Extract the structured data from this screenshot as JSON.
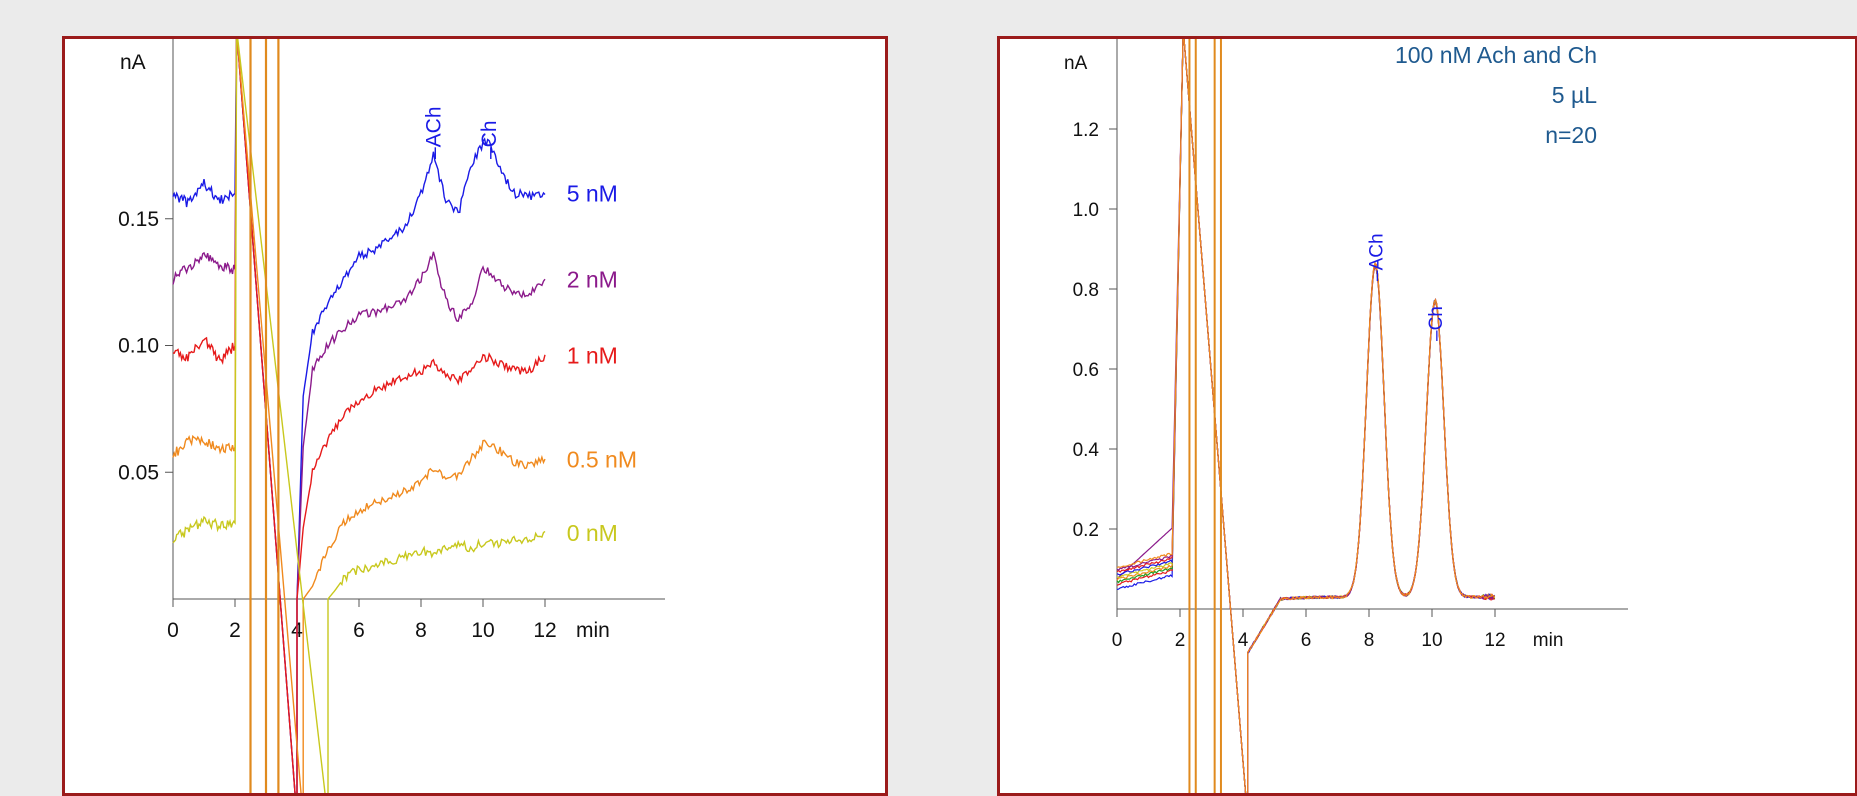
{
  "chart_data": [
    {
      "type": "line",
      "ylabel": "nA",
      "xlabel": "min",
      "xlim": [
        0,
        16
      ],
      "ylim": [
        0,
        0.22
      ],
      "xticks": [
        0,
        2,
        4,
        6,
        8,
        10,
        12
      ],
      "yticks": [
        0.05,
        0.1,
        0.15
      ],
      "ytick_labels": [
        "0.05",
        "0.10",
        "0.15"
      ],
      "grid": false,
      "vertical_lines_x": [
        2.5,
        3.0,
        3.4
      ],
      "vertical_line_color": "#e08a1e",
      "peak_labels": [
        {
          "text": "ACh",
          "x": 8.4
        },
        {
          "text": "Ch",
          "x": 10.2
        }
      ],
      "peak_label_color": "#1a1ae6",
      "series": [
        {
          "name": "5 nM",
          "color": "#1a1ae6",
          "offset": 0.108,
          "x": [
            0,
            0.5,
            1,
            1.5,
            2,
            2.05,
            4,
            4.2,
            4.5,
            5,
            5.5,
            6,
            6.5,
            7,
            7.5,
            8,
            8.4,
            8.8,
            9.2,
            9.6,
            10,
            10.2,
            10.5,
            11,
            11.5,
            12
          ],
          "y": [
            0.16,
            0.156,
            0.164,
            0.157,
            0.16,
            0.22,
            0.0,
            0.08,
            0.105,
            0.117,
            0.126,
            0.135,
            0.138,
            0.143,
            0.147,
            0.16,
            0.175,
            0.157,
            0.152,
            0.17,
            0.18,
            0.181,
            0.17,
            0.16,
            0.159,
            0.16
          ]
        },
        {
          "name": "2 nM",
          "color": "#8b1a8b",
          "offset": 0.072,
          "x": [
            0,
            0.5,
            1,
            1.5,
            2,
            2.05,
            4,
            4.2,
            4.5,
            5,
            5.5,
            6,
            6.5,
            7,
            7.5,
            8,
            8.4,
            8.8,
            9.2,
            9.6,
            10,
            10.2,
            10.5,
            11,
            11.5,
            12
          ],
          "y": [
            0.126,
            0.131,
            0.136,
            0.131,
            0.13,
            0.22,
            0.0,
            0.06,
            0.09,
            0.1,
            0.107,
            0.112,
            0.113,
            0.115,
            0.118,
            0.126,
            0.136,
            0.118,
            0.11,
            0.116,
            0.131,
            0.129,
            0.125,
            0.12,
            0.121,
            0.126
          ]
        },
        {
          "name": "1 nM",
          "color": "#e61a1a",
          "offset": 0.041,
          "x": [
            0,
            0.5,
            1,
            1.5,
            2,
            2.05,
            4,
            4.2,
            4.5,
            5,
            5.5,
            6,
            6.5,
            7,
            7.5,
            8,
            8.4,
            8.8,
            9.2,
            9.6,
            10,
            10.2,
            10.5,
            11,
            11.5,
            12
          ],
          "y": [
            0.098,
            0.095,
            0.103,
            0.094,
            0.1,
            0.22,
            0.0,
            0.028,
            0.05,
            0.063,
            0.072,
            0.078,
            0.082,
            0.085,
            0.088,
            0.09,
            0.093,
            0.088,
            0.086,
            0.09,
            0.095,
            0.095,
            0.093,
            0.09,
            0.09,
            0.096
          ]
        },
        {
          "name": "0.5 nM",
          "color": "#f08a1e",
          "offset": 0.0,
          "x": [
            0,
            0.5,
            1,
            1.5,
            2,
            2.05,
            4.2,
            4.5,
            5,
            5.5,
            6,
            6.5,
            7,
            7.5,
            8,
            8.4,
            8.8,
            9.2,
            9.6,
            10,
            10.2,
            10.5,
            11,
            11.5,
            12
          ],
          "y": [
            0.057,
            0.062,
            0.063,
            0.059,
            0.06,
            0.22,
            0.0,
            0.005,
            0.02,
            0.03,
            0.035,
            0.038,
            0.04,
            0.043,
            0.046,
            0.052,
            0.048,
            0.049,
            0.055,
            0.061,
            0.061,
            0.059,
            0.054,
            0.052,
            0.055
          ]
        },
        {
          "name": "0 nM",
          "color": "#c8c81e",
          "offset": -0.036,
          "x": [
            0,
            0.5,
            1,
            1.5,
            2,
            2.05,
            5.0,
            5.2,
            5.5,
            6,
            6.5,
            7,
            7.5,
            8,
            8.4,
            8.8,
            9.2,
            9.6,
            10,
            10.2,
            10.5,
            11,
            11.5,
            12
          ],
          "y": [
            0.024,
            0.027,
            0.031,
            0.029,
            0.03,
            0.22,
            0.0,
            0.003,
            0.008,
            0.012,
            0.013,
            0.015,
            0.017,
            0.019,
            0.018,
            0.02,
            0.022,
            0.02,
            0.022,
            0.023,
            0.022,
            0.024,
            0.023,
            0.026
          ]
        }
      ],
      "series_labels": [
        "5 nM",
        "2 nM",
        "1 nM",
        "0.5 nM",
        "0 nM"
      ]
    },
    {
      "type": "line",
      "ylabel": "nA",
      "xlabel": "min",
      "xlim": [
        0,
        16
      ],
      "ylim": [
        0,
        1.45
      ],
      "xticks": [
        0,
        2,
        4,
        6,
        8,
        10,
        12
      ],
      "yticks": [
        0.2,
        0.4,
        0.6,
        0.8,
        1.0,
        1.2
      ],
      "ytick_labels": [
        "0.2",
        "0.4",
        "0.6",
        "0.8",
        "1.0",
        "1.2"
      ],
      "grid": false,
      "annotations": [
        "100 nM Ach and Ch",
        "5 µL",
        "n=20"
      ],
      "annotation_color": "#1f5a8f",
      "vertical_lines_x": [
        2.3,
        2.5,
        3.1,
        3.3
      ],
      "vertical_line_color": "#e08a1e",
      "peak_labels": [
        {
          "text": "ACh",
          "x": 8.2
        },
        {
          "text": "Ch",
          "x": 10.1
        }
      ],
      "peak_label_color": "#1a1ae6",
      "trace_colors": [
        "#1a1ae6",
        "#8b1a8b",
        "#e61a1a",
        "#22a022",
        "#f08a1e",
        "#c8c81e",
        "#1a1ae6",
        "#e61a1a",
        "#8b1a8b",
        "#f08a1e"
      ],
      "peaks": [
        {
          "label": "ACh",
          "x": 8.2,
          "height": 0.83
        },
        {
          "label": "Ch",
          "x": 10.1,
          "height": 0.74
        }
      ],
      "baseline": 0.03,
      "x_end": 12
    }
  ]
}
